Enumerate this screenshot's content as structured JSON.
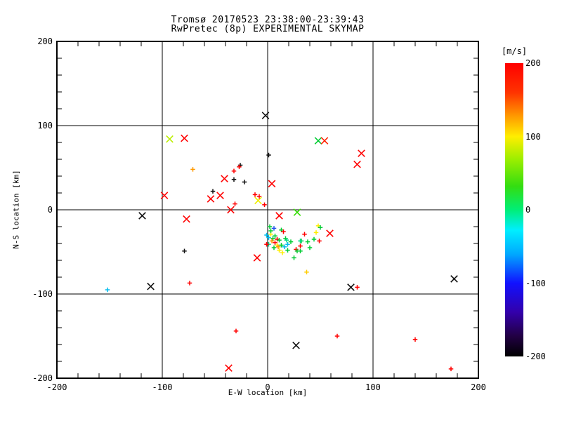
{
  "figure": {
    "title_line1": "Tromsø 20170523 23:38:00-23:39:43",
    "title_line2": "RwPretec (8p) EXPERIMENTAL SKYMAP"
  },
  "chart_data": {
    "type": "scatter",
    "title": "Tromsø 20170523 23:38:00-23:39:43",
    "subtitle": "RwPretec (8p) EXPERIMENTAL SKYMAP",
    "xlabel": "E-W location [km]",
    "ylabel": "N-S location [km]",
    "xlim": [
      -200,
      200
    ],
    "ylim": [
      -200,
      200
    ],
    "grid": {
      "on": true,
      "x": [
        -100,
        0,
        100
      ],
      "y": [
        -100,
        0,
        100
      ]
    },
    "ticks": {
      "major_step": 100,
      "minor_step": 20,
      "x_labels": [
        {
          "v": -200,
          "t": "-200"
        },
        {
          "v": -100,
          "t": "-100"
        },
        {
          "v": 0,
          "t": "0"
        },
        {
          "v": 100,
          "t": "100"
        },
        {
          "v": 200,
          "t": "200"
        }
      ],
      "y_labels": [
        {
          "v": 200,
          "t": "200"
        },
        {
          "v": 100,
          "t": "100"
        },
        {
          "v": 0,
          "t": "0"
        },
        {
          "v": -100,
          "t": "-100"
        },
        {
          "v": -200,
          "t": "-200"
        }
      ]
    },
    "colorbar": {
      "label": "[m/s]",
      "range": [
        -200,
        200
      ],
      "ticks": [
        {
          "t": "200",
          "v": 200
        },
        {
          "t": "100",
          "v": 100
        },
        {
          "t": "0",
          "v": 0
        },
        {
          "t": "-100",
          "v": -100
        },
        {
          "t": "-200",
          "v": -200
        }
      ],
      "gradient": [
        {
          "p": 0.0,
          "c": "#ff0000"
        },
        {
          "p": 0.1,
          "c": "#ff3300"
        },
        {
          "p": 0.18,
          "c": "#ff9900"
        },
        {
          "p": 0.25,
          "c": "#ffee00"
        },
        {
          "p": 0.33,
          "c": "#99ee00"
        },
        {
          "p": 0.42,
          "c": "#33dd11"
        },
        {
          "p": 0.5,
          "c": "#00ee77"
        },
        {
          "p": 0.57,
          "c": "#00eeff"
        },
        {
          "p": 0.65,
          "c": "#00aaff"
        },
        {
          "p": 0.75,
          "c": "#1111ff"
        },
        {
          "p": 0.85,
          "c": "#3300aa"
        },
        {
          "p": 0.93,
          "c": "#220044"
        },
        {
          "p": 1.0,
          "c": "#000000"
        }
      ]
    },
    "points": [
      {
        "x": -2,
        "y": 112,
        "m": "x",
        "c": "#111111",
        "v": -190
      },
      {
        "x": -93,
        "y": 84,
        "m": "x",
        "c": "#bbee00",
        "v": 90
      },
      {
        "x": -79,
        "y": 85,
        "m": "x",
        "c": "#ff0000",
        "v": 190
      },
      {
        "x": 48,
        "y": 82,
        "m": "x",
        "c": "#00cc33",
        "v": 40
      },
      {
        "x": 54,
        "y": 82,
        "m": "x",
        "c": "#ff2200",
        "v": 180
      },
      {
        "x": 89,
        "y": 67,
        "m": "x",
        "c": "#ff0000",
        "v": 190
      },
      {
        "x": 85,
        "y": 54,
        "m": "x",
        "c": "#ff0000",
        "v": 190
      },
      {
        "x": -98,
        "y": 17,
        "m": "x",
        "c": "#ff0000",
        "v": 190
      },
      {
        "x": -41,
        "y": 37,
        "m": "x",
        "c": "#ff0000",
        "v": 190
      },
      {
        "x": -119,
        "y": -7,
        "m": "x",
        "c": "#111111",
        "v": -190
      },
      {
        "x": -45,
        "y": 17,
        "m": "x",
        "c": "#ff0000",
        "v": 190
      },
      {
        "x": -54,
        "y": 13,
        "m": "x",
        "c": "#ff0000",
        "v": 190
      },
      {
        "x": -9,
        "y": 11,
        "m": "x",
        "c": "#eeee00",
        "v": 100
      },
      {
        "x": -35,
        "y": 0,
        "m": "x",
        "c": "#ff0000",
        "v": 190
      },
      {
        "x": -77,
        "y": -11,
        "m": "x",
        "c": "#ff0000",
        "v": 190
      },
      {
        "x": 11,
        "y": -7,
        "m": "x",
        "c": "#ff0000",
        "v": 190
      },
      {
        "x": 28,
        "y": -3,
        "m": "x",
        "c": "#33dd00",
        "v": 50
      },
      {
        "x": 59,
        "y": -28,
        "m": "x",
        "c": "#ff0000",
        "v": 190
      },
      {
        "x": -10,
        "y": -57,
        "m": "x",
        "c": "#ff0000",
        "v": 190
      },
      {
        "x": -111,
        "y": -91,
        "m": "x",
        "c": "#111111",
        "v": -190
      },
      {
        "x": 79,
        "y": -92,
        "m": "x",
        "c": "#111111",
        "v": -190
      },
      {
        "x": 177,
        "y": -82,
        "m": "x",
        "c": "#111111",
        "v": -190
      },
      {
        "x": 27,
        "y": -161,
        "m": "x",
        "c": "#111111",
        "v": -190
      },
      {
        "x": -37,
        "y": -188,
        "m": "x",
        "c": "#ff0000",
        "v": 190
      },
      {
        "x": 4,
        "y": 31,
        "m": "x",
        "c": "#ff0000",
        "v": 190
      },
      {
        "x": -71,
        "y": 48,
        "m": "+",
        "c": "#ff9900",
        "v": 140
      },
      {
        "x": -26,
        "y": 53,
        "m": "+",
        "c": "#111111",
        "v": -190
      },
      {
        "x": -27,
        "y": 51,
        "m": "+",
        "c": "#ff0000",
        "v": 190
      },
      {
        "x": -32,
        "y": 46,
        "m": "+",
        "c": "#ff0000",
        "v": 190
      },
      {
        "x": -32,
        "y": 36,
        "m": "+",
        "c": "#111111",
        "v": -190
      },
      {
        "x": -22,
        "y": 33,
        "m": "+",
        "c": "#111111",
        "v": -190
      },
      {
        "x": 1,
        "y": 65,
        "m": "+",
        "c": "#111111",
        "v": -190
      },
      {
        "x": -52,
        "y": 22,
        "m": "+",
        "c": "#111111",
        "v": -190
      },
      {
        "x": -12,
        "y": 18,
        "m": "+",
        "c": "#ff0000",
        "v": 190
      },
      {
        "x": -8,
        "y": 16,
        "m": "+",
        "c": "#ff0000",
        "v": 190
      },
      {
        "x": -31,
        "y": 7,
        "m": "+",
        "c": "#ff0000",
        "v": 190
      },
      {
        "x": -3,
        "y": 6,
        "m": "+",
        "c": "#ff0000",
        "v": 190
      },
      {
        "x": -79,
        "y": -49,
        "m": "+",
        "c": "#111111",
        "v": -190
      },
      {
        "x": -152,
        "y": -95,
        "m": "+",
        "c": "#00bbee",
        "v": -40
      },
      {
        "x": -74,
        "y": -87,
        "m": "+",
        "c": "#ff0000",
        "v": 190
      },
      {
        "x": -30,
        "y": -144,
        "m": "+",
        "c": "#ff0000",
        "v": 190
      },
      {
        "x": 85,
        "y": -92,
        "m": "+",
        "c": "#ff0000",
        "v": 190
      },
      {
        "x": 66,
        "y": -150,
        "m": "+",
        "c": "#ff0000",
        "v": 190
      },
      {
        "x": 140,
        "y": -154,
        "m": "+",
        "c": "#ff0000",
        "v": 190
      },
      {
        "x": 174,
        "y": -189,
        "m": "+",
        "c": "#ff0000",
        "v": 190
      },
      {
        "x": 37,
        "y": -74,
        "m": "+",
        "c": "#ffcc00",
        "v": 110
      },
      {
        "x": 2,
        "y": -20,
        "m": "+",
        "c": "#00cc33",
        "v": 40
      },
      {
        "x": 6,
        "y": -22,
        "m": "+",
        "c": "#2255ee",
        "v": -90
      },
      {
        "x": 13,
        "y": -24,
        "m": "+",
        "c": "#00cc33",
        "v": 40
      },
      {
        "x": 15,
        "y": -26,
        "m": "+",
        "c": "#ff0000",
        "v": 190
      },
      {
        "x": -1,
        "y": -30,
        "m": "+",
        "c": "#00bbee",
        "v": -40
      },
      {
        "x": 3,
        "y": -29,
        "m": "+",
        "c": "#ffee00",
        "v": 100
      },
      {
        "x": 7,
        "y": -31,
        "m": "+",
        "c": "#00cc33",
        "v": 40
      },
      {
        "x": 1,
        "y": -33,
        "m": "+",
        "c": "#00bbee",
        "v": -40
      },
      {
        "x": 5,
        "y": -34,
        "m": "+",
        "c": "#00cc33",
        "v": 40
      },
      {
        "x": 9,
        "y": -35,
        "m": "+",
        "c": "#ff0000",
        "v": 190
      },
      {
        "x": 4,
        "y": -37,
        "m": "+",
        "c": "#ff9900",
        "v": 140
      },
      {
        "x": 7,
        "y": -39,
        "m": "+",
        "c": "#ff0000",
        "v": 190
      },
      {
        "x": 11,
        "y": -36,
        "m": "+",
        "c": "#00cc33",
        "v": 40
      },
      {
        "x": 17,
        "y": -34,
        "m": "+",
        "c": "#00cc33",
        "v": 40
      },
      {
        "x": 19,
        "y": -41,
        "m": "+",
        "c": "#00bbee",
        "v": -40
      },
      {
        "x": 22,
        "y": -38,
        "m": "+",
        "c": "#00cc33",
        "v": 40
      },
      {
        "x": 9,
        "y": -42,
        "m": "+",
        "c": "#ffee00",
        "v": 100
      },
      {
        "x": 13,
        "y": -42,
        "m": "+",
        "c": "#00cc33",
        "v": 40
      },
      {
        "x": 16,
        "y": -44,
        "m": "+",
        "c": "#00bbee",
        "v": -40
      },
      {
        "x": 11,
        "y": -48,
        "m": "+",
        "c": "#ffee00",
        "v": 100
      },
      {
        "x": 19,
        "y": -48,
        "m": "+",
        "c": "#00cc33",
        "v": 40
      },
      {
        "x": 27,
        "y": -47,
        "m": "+",
        "c": "#ff0000",
        "v": 190
      },
      {
        "x": 28,
        "y": -49,
        "m": "+",
        "c": "#00cc33",
        "v": 40
      },
      {
        "x": 25,
        "y": -57,
        "m": "+",
        "c": "#00cc33",
        "v": 40
      },
      {
        "x": 1,
        "y": -41,
        "m": "+",
        "c": "#00dd88",
        "v": 5
      },
      {
        "x": -1,
        "y": -41,
        "m": "+",
        "c": "#ff0000",
        "v": 190
      },
      {
        "x": 3,
        "y": -25,
        "m": "+",
        "c": "#00cc33",
        "v": 40
      },
      {
        "x": 6,
        "y": -45,
        "m": "+",
        "c": "#00cc33",
        "v": 40
      },
      {
        "x": 10,
        "y": -44,
        "m": "+",
        "c": "#ff9900",
        "v": 140
      },
      {
        "x": 14,
        "y": -51,
        "m": "+",
        "c": "#ffee00",
        "v": 100
      },
      {
        "x": 18,
        "y": -36,
        "m": "+",
        "c": "#00dd88",
        "v": 5
      },
      {
        "x": 48,
        "y": -19,
        "m": "+",
        "c": "#ffee00",
        "v": 100
      },
      {
        "x": 50,
        "y": -21,
        "m": "+",
        "c": "#00cc33",
        "v": 40
      },
      {
        "x": 35,
        "y": -29,
        "m": "+",
        "c": "#ff0000",
        "v": 190
      },
      {
        "x": 46,
        "y": -27,
        "m": "+",
        "c": "#ffee00",
        "v": 100
      },
      {
        "x": 44,
        "y": -35,
        "m": "+",
        "c": "#00cc33",
        "v": 40
      },
      {
        "x": 32,
        "y": -37,
        "m": "+",
        "c": "#00cc33",
        "v": 40
      },
      {
        "x": 31,
        "y": -37,
        "m": "+",
        "c": "#00dd88",
        "v": 5
      },
      {
        "x": 38,
        "y": -38,
        "m": "+",
        "c": "#00cc33",
        "v": 40
      },
      {
        "x": 49,
        "y": -37,
        "m": "+",
        "c": "#ff0000",
        "v": 190
      },
      {
        "x": 31,
        "y": -43,
        "m": "+",
        "c": "#ff0000",
        "v": 190
      },
      {
        "x": 40,
        "y": -45,
        "m": "+",
        "c": "#00cc33",
        "v": 40
      },
      {
        "x": 31,
        "y": -49,
        "m": "+",
        "c": "#00cc33",
        "v": 40
      }
    ]
  }
}
